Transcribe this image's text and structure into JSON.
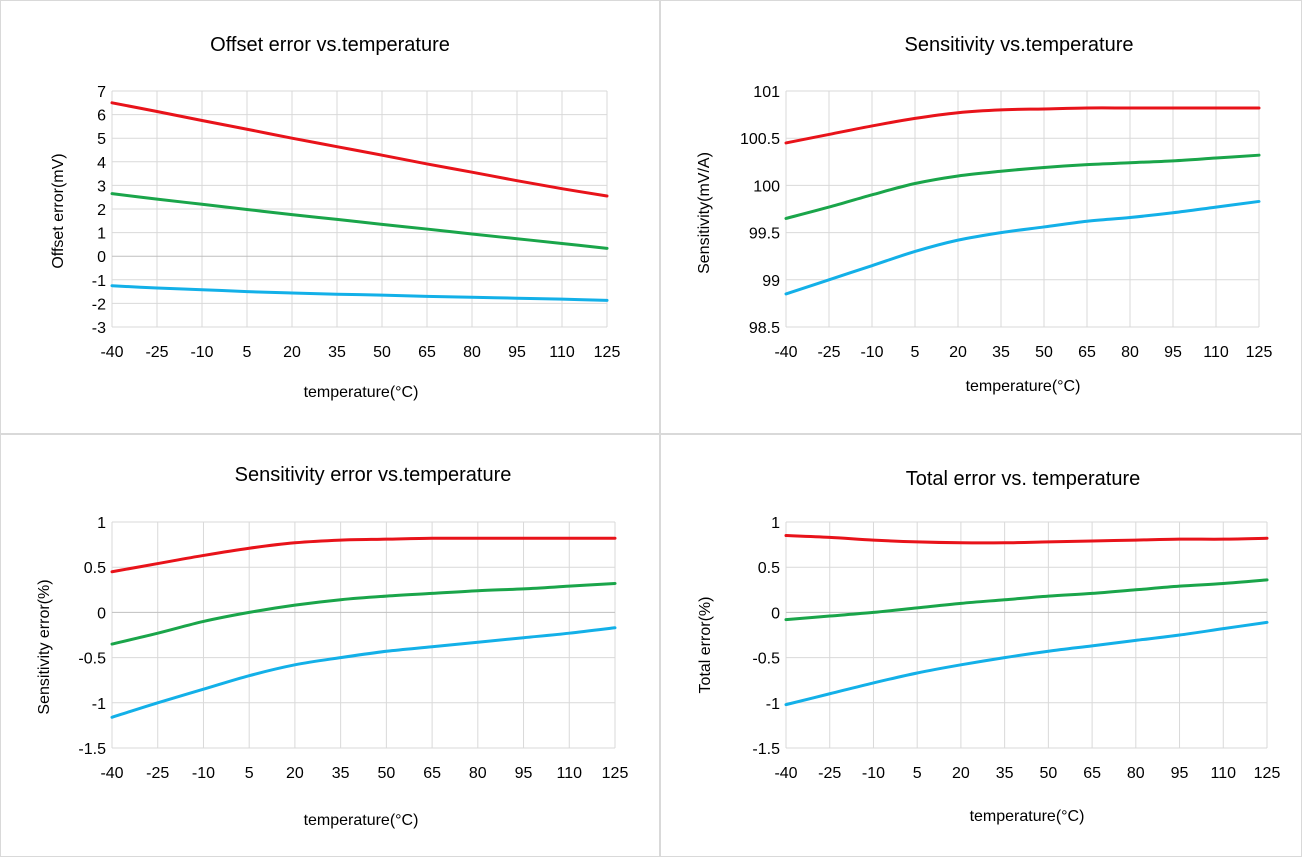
{
  "chart_data": [
    {
      "type": "line",
      "title": "Offset error vs.temperature",
      "xlabel": "temperature(°C)",
      "ylabel": "Offset error(mV)",
      "x": [
        -40,
        -25,
        -10,
        5,
        20,
        35,
        50,
        65,
        80,
        95,
        110,
        125
      ],
      "xticks": [
        "-40",
        "-25",
        "-10",
        "5",
        "20",
        "35",
        "50",
        "65",
        "80",
        "95",
        "110",
        "125"
      ],
      "ylim": [
        -3,
        7
      ],
      "yticks": [
        "7",
        "6",
        "5",
        "4",
        "3",
        "2",
        "1",
        "0",
        "-1",
        "-2",
        "-3"
      ],
      "grid": true,
      "series": [
        {
          "color": "#e8131a",
          "values": [
            6.5,
            6.13,
            5.75,
            5.38,
            5.0,
            4.64,
            4.28,
            3.91,
            3.56,
            3.2,
            2.86,
            2.55
          ]
        },
        {
          "color": "#1aa54a",
          "values": [
            2.65,
            2.42,
            2.2,
            1.98,
            1.76,
            1.56,
            1.35,
            1.15,
            0.94,
            0.74,
            0.54,
            0.33
          ]
        },
        {
          "color": "#13b0e8",
          "values": [
            -1.25,
            -1.35,
            -1.42,
            -1.5,
            -1.56,
            -1.61,
            -1.65,
            -1.7,
            -1.74,
            -1.78,
            -1.82,
            -1.87
          ]
        }
      ]
    },
    {
      "type": "line",
      "title": "Sensitivity vs.temperature",
      "xlabel": "temperature(°C)",
      "ylabel": "Sensitivity(mV/A)",
      "x": [
        -40,
        -25,
        -10,
        5,
        20,
        35,
        50,
        65,
        80,
        95,
        110,
        125
      ],
      "xticks": [
        "-40",
        "-25",
        "-10",
        "5",
        "20",
        "35",
        "50",
        "65",
        "80",
        "95",
        "110",
        "125"
      ],
      "ylim": [
        98.5,
        101
      ],
      "yticks": [
        "101",
        "100.5",
        "100",
        "99.5",
        "99",
        "98.5"
      ],
      "grid": true,
      "series": [
        {
          "color": "#e8131a",
          "values": [
            100.45,
            100.54,
            100.63,
            100.71,
            100.77,
            100.8,
            100.81,
            100.82,
            100.82,
            100.82,
            100.82,
            100.82
          ]
        },
        {
          "color": "#1aa54a",
          "values": [
            99.65,
            99.77,
            99.9,
            100.02,
            100.1,
            100.15,
            100.19,
            100.22,
            100.24,
            100.26,
            100.29,
            100.32
          ]
        },
        {
          "color": "#13b0e8",
          "values": [
            98.85,
            99.0,
            99.15,
            99.3,
            99.42,
            99.5,
            99.56,
            99.62,
            99.66,
            99.71,
            99.77,
            99.83
          ]
        }
      ]
    },
    {
      "type": "line",
      "title": "Sensitivity error vs.temperature",
      "xlabel": "temperature(°C)",
      "ylabel": "Sensitivity error(%)",
      "x": [
        -40,
        -25,
        -10,
        5,
        20,
        35,
        50,
        65,
        80,
        95,
        110,
        125
      ],
      "xticks": [
        "-40",
        "-25",
        "-10",
        "5",
        "20",
        "35",
        "50",
        "65",
        "80",
        "95",
        "110",
        "125"
      ],
      "ylim": [
        -1.5,
        1
      ],
      "yticks": [
        "1",
        "0.5",
        "0",
        "-0.5",
        "-1",
        "-1.5"
      ],
      "grid": true,
      "series": [
        {
          "color": "#e8131a",
          "values": [
            0.45,
            0.54,
            0.63,
            0.71,
            0.77,
            0.8,
            0.81,
            0.82,
            0.82,
            0.82,
            0.82,
            0.82
          ]
        },
        {
          "color": "#1aa54a",
          "values": [
            -0.35,
            -0.23,
            -0.1,
            0.0,
            0.08,
            0.14,
            0.18,
            0.21,
            0.24,
            0.26,
            0.29,
            0.32
          ]
        },
        {
          "color": "#13b0e8",
          "values": [
            -1.16,
            -1.0,
            -0.85,
            -0.7,
            -0.58,
            -0.5,
            -0.43,
            -0.38,
            -0.33,
            -0.28,
            -0.23,
            -0.17
          ]
        }
      ]
    },
    {
      "type": "line",
      "title": "Total error vs. temperature",
      "xlabel": "temperature(°C)",
      "ylabel": "Total error(%)",
      "x": [
        -40,
        -25,
        -10,
        5,
        20,
        35,
        50,
        65,
        80,
        95,
        110,
        125
      ],
      "xticks": [
        "-40",
        "-25",
        "-10",
        "5",
        "20",
        "35",
        "50",
        "65",
        "80",
        "95",
        "110",
        "125"
      ],
      "ylim": [
        -1.5,
        1
      ],
      "yticks": [
        "1",
        "0.5",
        "0",
        "-0.5",
        "-1",
        "-1.5"
      ],
      "grid": true,
      "series": [
        {
          "color": "#e8131a",
          "values": [
            0.85,
            0.83,
            0.8,
            0.78,
            0.77,
            0.77,
            0.78,
            0.79,
            0.8,
            0.81,
            0.81,
            0.82
          ]
        },
        {
          "color": "#1aa54a",
          "values": [
            -0.08,
            -0.04,
            0.0,
            0.05,
            0.1,
            0.14,
            0.18,
            0.21,
            0.25,
            0.29,
            0.32,
            0.36
          ]
        },
        {
          "color": "#13b0e8",
          "values": [
            -1.02,
            -0.9,
            -0.78,
            -0.67,
            -0.58,
            -0.5,
            -0.43,
            -0.37,
            -0.31,
            -0.25,
            -0.18,
            -0.11
          ]
        }
      ]
    }
  ]
}
